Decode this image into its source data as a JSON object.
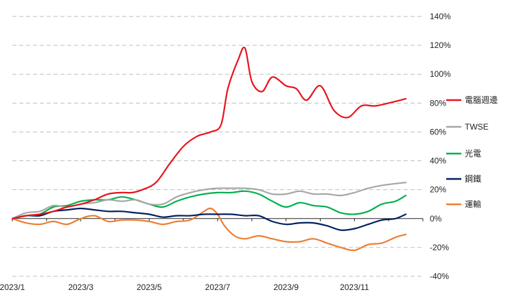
{
  "chart_data": {
    "type": "line",
    "title": "",
    "xlabel": "",
    "ylabel": "",
    "ylim": [
      -40,
      140
    ],
    "yticks": [
      140,
      120,
      100,
      80,
      60,
      40,
      20,
      0,
      -20,
      -40
    ],
    "ytick_labels": [
      "140%",
      "120%",
      "100%",
      "80%",
      "60%",
      "40%",
      "20%",
      "0%",
      "-20%",
      "-40%"
    ],
    "xlim": [
      0,
      12
    ],
    "xticks": [
      {
        "x": 0,
        "label": "2023/1"
      },
      {
        "x": 2,
        "label": "2023/3"
      },
      {
        "x": 4,
        "label": "2023/5"
      },
      {
        "x": 6,
        "label": "2023/7"
      },
      {
        "x": 8,
        "label": "2023/9"
      },
      {
        "x": 10,
        "label": "2023/11"
      }
    ],
    "grid": "horizontal dashed",
    "legend_position": "right",
    "series": [
      {
        "name": "電腦週邊",
        "color": "#e8131b",
        "points": [
          [
            0,
            0
          ],
          [
            0.4,
            2
          ],
          [
            0.8,
            3
          ],
          [
            1.2,
            5
          ],
          [
            1.6,
            8
          ],
          [
            2.0,
            10
          ],
          [
            2.4,
            13
          ],
          [
            2.8,
            17
          ],
          [
            3.2,
            18
          ],
          [
            3.5,
            18
          ],
          [
            3.8,
            20
          ],
          [
            4.2,
            25
          ],
          [
            4.6,
            38
          ],
          [
            5.0,
            50
          ],
          [
            5.4,
            57
          ],
          [
            5.8,
            60
          ],
          [
            6.1,
            65
          ],
          [
            6.3,
            90
          ],
          [
            6.6,
            110
          ],
          [
            6.8,
            118
          ],
          [
            7.0,
            95
          ],
          [
            7.3,
            88
          ],
          [
            7.6,
            98
          ],
          [
            8.0,
            92
          ],
          [
            8.3,
            90
          ],
          [
            8.6,
            82
          ],
          [
            9.0,
            92
          ],
          [
            9.4,
            75
          ],
          [
            9.8,
            70
          ],
          [
            10.2,
            78
          ],
          [
            10.6,
            78
          ],
          [
            11.0,
            80
          ],
          [
            11.5,
            83
          ]
        ]
      },
      {
        "name": "TWSE",
        "color": "#a6a6a6",
        "points": [
          [
            0,
            0
          ],
          [
            0.4,
            4
          ],
          [
            0.8,
            5
          ],
          [
            1.2,
            9
          ],
          [
            1.6,
            8
          ],
          [
            2.0,
            10
          ],
          [
            2.4,
            11
          ],
          [
            2.8,
            13
          ],
          [
            3.2,
            12
          ],
          [
            3.6,
            13
          ],
          [
            4.0,
            10
          ],
          [
            4.4,
            10
          ],
          [
            4.8,
            15
          ],
          [
            5.2,
            18
          ],
          [
            5.6,
            20
          ],
          [
            6.0,
            21
          ],
          [
            6.4,
            21
          ],
          [
            6.8,
            21
          ],
          [
            7.2,
            20
          ],
          [
            7.6,
            17
          ],
          [
            8.0,
            17
          ],
          [
            8.4,
            19
          ],
          [
            8.8,
            17
          ],
          [
            9.2,
            17
          ],
          [
            9.6,
            16
          ],
          [
            10.0,
            18
          ],
          [
            10.4,
            21
          ],
          [
            10.8,
            23
          ],
          [
            11.5,
            25
          ]
        ]
      },
      {
        "name": "光電",
        "color": "#00b050",
        "points": [
          [
            0,
            0
          ],
          [
            0.4,
            2
          ],
          [
            0.8,
            3
          ],
          [
            1.2,
            8
          ],
          [
            1.6,
            9
          ],
          [
            2.0,
            12
          ],
          [
            2.4,
            13
          ],
          [
            2.8,
            13
          ],
          [
            3.2,
            15
          ],
          [
            3.6,
            13
          ],
          [
            4.0,
            10
          ],
          [
            4.4,
            8
          ],
          [
            4.8,
            12
          ],
          [
            5.2,
            15
          ],
          [
            5.6,
            17
          ],
          [
            6.0,
            18
          ],
          [
            6.4,
            18
          ],
          [
            6.8,
            19
          ],
          [
            7.2,
            17
          ],
          [
            7.6,
            12
          ],
          [
            8.0,
            8
          ],
          [
            8.4,
            11
          ],
          [
            8.8,
            9
          ],
          [
            9.2,
            8
          ],
          [
            9.6,
            4
          ],
          [
            10.0,
            3
          ],
          [
            10.4,
            5
          ],
          [
            10.8,
            10
          ],
          [
            11.2,
            12
          ],
          [
            11.5,
            16
          ]
        ]
      },
      {
        "name": "鋼鐵",
        "color": "#002060",
        "points": [
          [
            0,
            0
          ],
          [
            0.4,
            2
          ],
          [
            0.8,
            2
          ],
          [
            1.2,
            5
          ],
          [
            1.6,
            6
          ],
          [
            2.0,
            7
          ],
          [
            2.4,
            6
          ],
          [
            2.8,
            5
          ],
          [
            3.2,
            5
          ],
          [
            3.6,
            4
          ],
          [
            4.0,
            3
          ],
          [
            4.4,
            1
          ],
          [
            4.8,
            2
          ],
          [
            5.2,
            2
          ],
          [
            5.6,
            3
          ],
          [
            6.0,
            3
          ],
          [
            6.4,
            3
          ],
          [
            6.8,
            2
          ],
          [
            7.2,
            2
          ],
          [
            7.6,
            -2
          ],
          [
            8.0,
            -4
          ],
          [
            8.4,
            -3
          ],
          [
            8.8,
            -3
          ],
          [
            9.2,
            -5
          ],
          [
            9.6,
            -8
          ],
          [
            10.0,
            -7
          ],
          [
            10.4,
            -4
          ],
          [
            10.8,
            -1
          ],
          [
            11.2,
            0
          ],
          [
            11.5,
            3
          ]
        ]
      },
      {
        "name": "運輸",
        "color": "#ed7d31",
        "points": [
          [
            0,
            0
          ],
          [
            0.4,
            -3
          ],
          [
            0.8,
            -4
          ],
          [
            1.2,
            -2
          ],
          [
            1.6,
            -4
          ],
          [
            2.0,
            0
          ],
          [
            2.4,
            2
          ],
          [
            2.8,
            -2
          ],
          [
            3.2,
            -1
          ],
          [
            3.6,
            -1
          ],
          [
            4.0,
            -2
          ],
          [
            4.4,
            -4
          ],
          [
            4.8,
            -2
          ],
          [
            5.2,
            -1
          ],
          [
            5.6,
            5
          ],
          [
            5.8,
            7
          ],
          [
            6.0,
            3
          ],
          [
            6.2,
            -5
          ],
          [
            6.5,
            -12
          ],
          [
            6.8,
            -14
          ],
          [
            7.2,
            -12
          ],
          [
            7.6,
            -14
          ],
          [
            8.0,
            -16
          ],
          [
            8.4,
            -16
          ],
          [
            8.8,
            -14
          ],
          [
            9.2,
            -17
          ],
          [
            9.6,
            -20
          ],
          [
            10.0,
            -22
          ],
          [
            10.4,
            -18
          ],
          [
            10.8,
            -17
          ],
          [
            11.2,
            -13
          ],
          [
            11.5,
            -11
          ]
        ]
      }
    ]
  }
}
